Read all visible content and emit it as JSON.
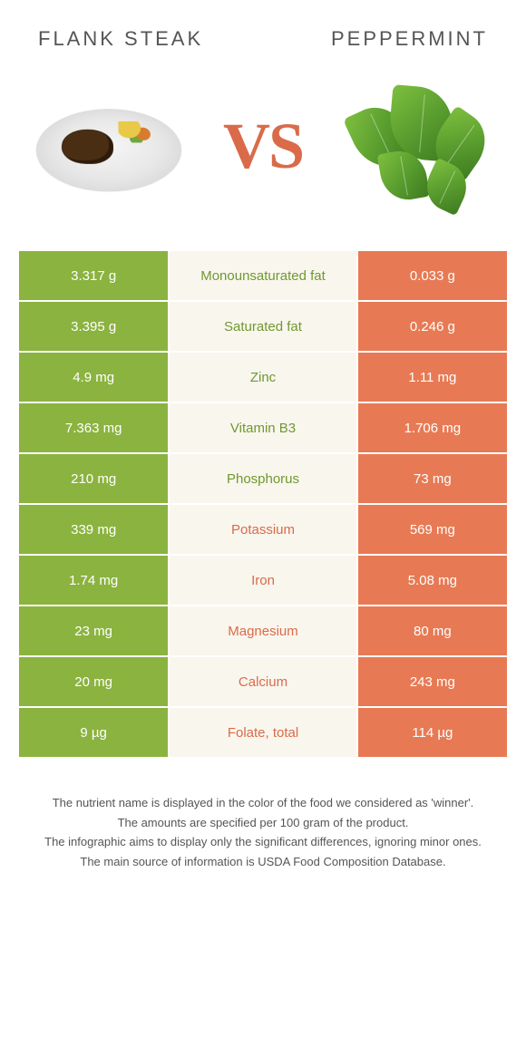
{
  "header": {
    "left_title": "FLANK STEAK",
    "right_title": "PEPPERMINT",
    "vs_label": "VS"
  },
  "colors": {
    "left_food": "#8bb33f",
    "right_food": "#e77a54",
    "mid_bg": "#f9f6ee",
    "left_text_win": "#6f9930",
    "right_text_win": "#d96b4a",
    "vs_color": "#d96b4a"
  },
  "rows": [
    {
      "nutrient": "Monounsaturated fat",
      "left": "3.317 g",
      "right": "0.033 g",
      "winner": "left"
    },
    {
      "nutrient": "Saturated fat",
      "left": "3.395 g",
      "right": "0.246 g",
      "winner": "left"
    },
    {
      "nutrient": "Zinc",
      "left": "4.9 mg",
      "right": "1.11 mg",
      "winner": "left"
    },
    {
      "nutrient": "Vitamin B3",
      "left": "7.363 mg",
      "right": "1.706 mg",
      "winner": "left"
    },
    {
      "nutrient": "Phosphorus",
      "left": "210 mg",
      "right": "73 mg",
      "winner": "left"
    },
    {
      "nutrient": "Potassium",
      "left": "339 mg",
      "right": "569 mg",
      "winner": "right"
    },
    {
      "nutrient": "Iron",
      "left": "1.74 mg",
      "right": "5.08 mg",
      "winner": "right"
    },
    {
      "nutrient": "Magnesium",
      "left": "23 mg",
      "right": "80 mg",
      "winner": "right"
    },
    {
      "nutrient": "Calcium",
      "left": "20 mg",
      "right": "243 mg",
      "winner": "right"
    },
    {
      "nutrient": "Folate, total",
      "left": "9 µg",
      "right": "114 µg",
      "winner": "right"
    }
  ],
  "footer": {
    "line1": "The nutrient name is displayed in the color of the food we considered as 'winner'.",
    "line2": "The amounts are specified per 100 gram of the product.",
    "line3": "The infographic aims to display only the significant differences, ignoring minor ones.",
    "line4": "The main source of information is USDA Food Composition Database."
  }
}
